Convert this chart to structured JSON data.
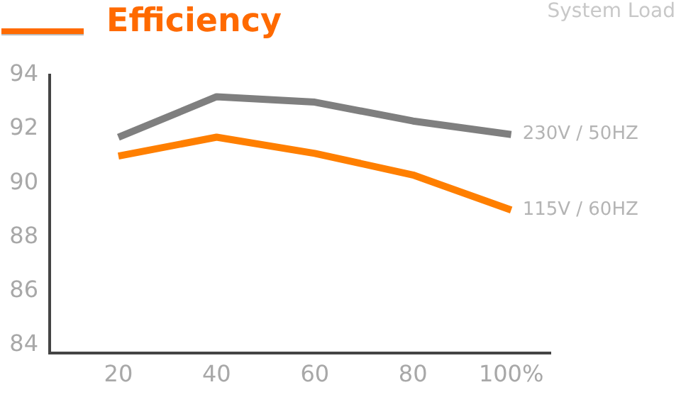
{
  "chart_data": {
    "type": "line",
    "title": "Efficiency",
    "xlabel": "System Load",
    "x": [
      20,
      40,
      60,
      80,
      100
    ],
    "xlim": [
      6,
      108
    ],
    "xticks": [
      20,
      40,
      60,
      80,
      {
        "value": 100,
        "label": "100%"
      }
    ],
    "ylim": [
      83.7,
      94
    ],
    "yticks": [
      84,
      86,
      88,
      90,
      92,
      94
    ],
    "series": [
      {
        "name": "230V / 50HZ",
        "color": "#7f7f7f",
        "values": [
          91.7,
          93.2,
          93.0,
          92.3,
          91.8
        ]
      },
      {
        "name": "115V / 60HZ",
        "color": "#ff7f00",
        "values": [
          91.0,
          91.7,
          91.1,
          90.3,
          89.0
        ]
      }
    ],
    "grid": false,
    "legend": false,
    "marker": "none",
    "line_style": "solid"
  }
}
